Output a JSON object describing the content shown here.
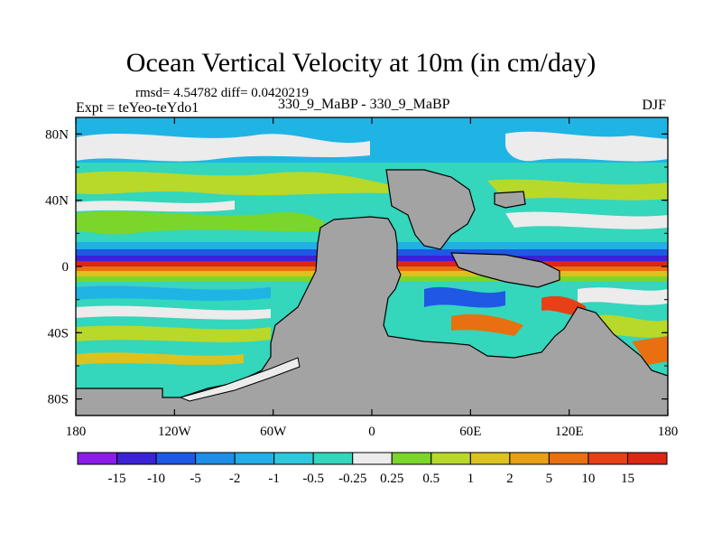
{
  "title": "Ocean Vertical Velocity at 10m (in cm/day)",
  "stats": "rmsd= 4.54782 diff= 0.0420219",
  "experiment": "Expt = teYeo-teYdo1",
  "comparison": "330_9_MaBP - 330_9_MaBP",
  "season": "DJF",
  "map": {
    "lon_range": [
      -180,
      180
    ],
    "lat_range": [
      -90,
      90
    ],
    "x_ticks": [
      "180",
      "120W",
      "60W",
      "0",
      "60E",
      "120E",
      "180"
    ],
    "y_ticks": [
      "80N",
      "40N",
      "0",
      "40S",
      "80S"
    ],
    "y_tick_values": [
      80,
      40,
      0,
      -40,
      -80
    ]
  },
  "colorbar": {
    "labels": [
      "-15",
      "-10",
      "-5",
      "-2",
      "-1",
      "-0.5",
      "-0.25",
      "0.25",
      "0.5",
      "1",
      "2",
      "5",
      "10",
      "15"
    ],
    "colors": [
      "#8a1ee8",
      "#3b22d6",
      "#1f58e4",
      "#1e8ee6",
      "#22aee6",
      "#2ec8dc",
      "#34d6bc",
      "#ececec",
      "#7ad62a",
      "#b8d82a",
      "#dcc21e",
      "#e6a014",
      "#e87010",
      "#e84016",
      "#dc2616"
    ]
  },
  "colors": {
    "land": "#a3a3a3",
    "ocean_base": "#34d6bc"
  }
}
